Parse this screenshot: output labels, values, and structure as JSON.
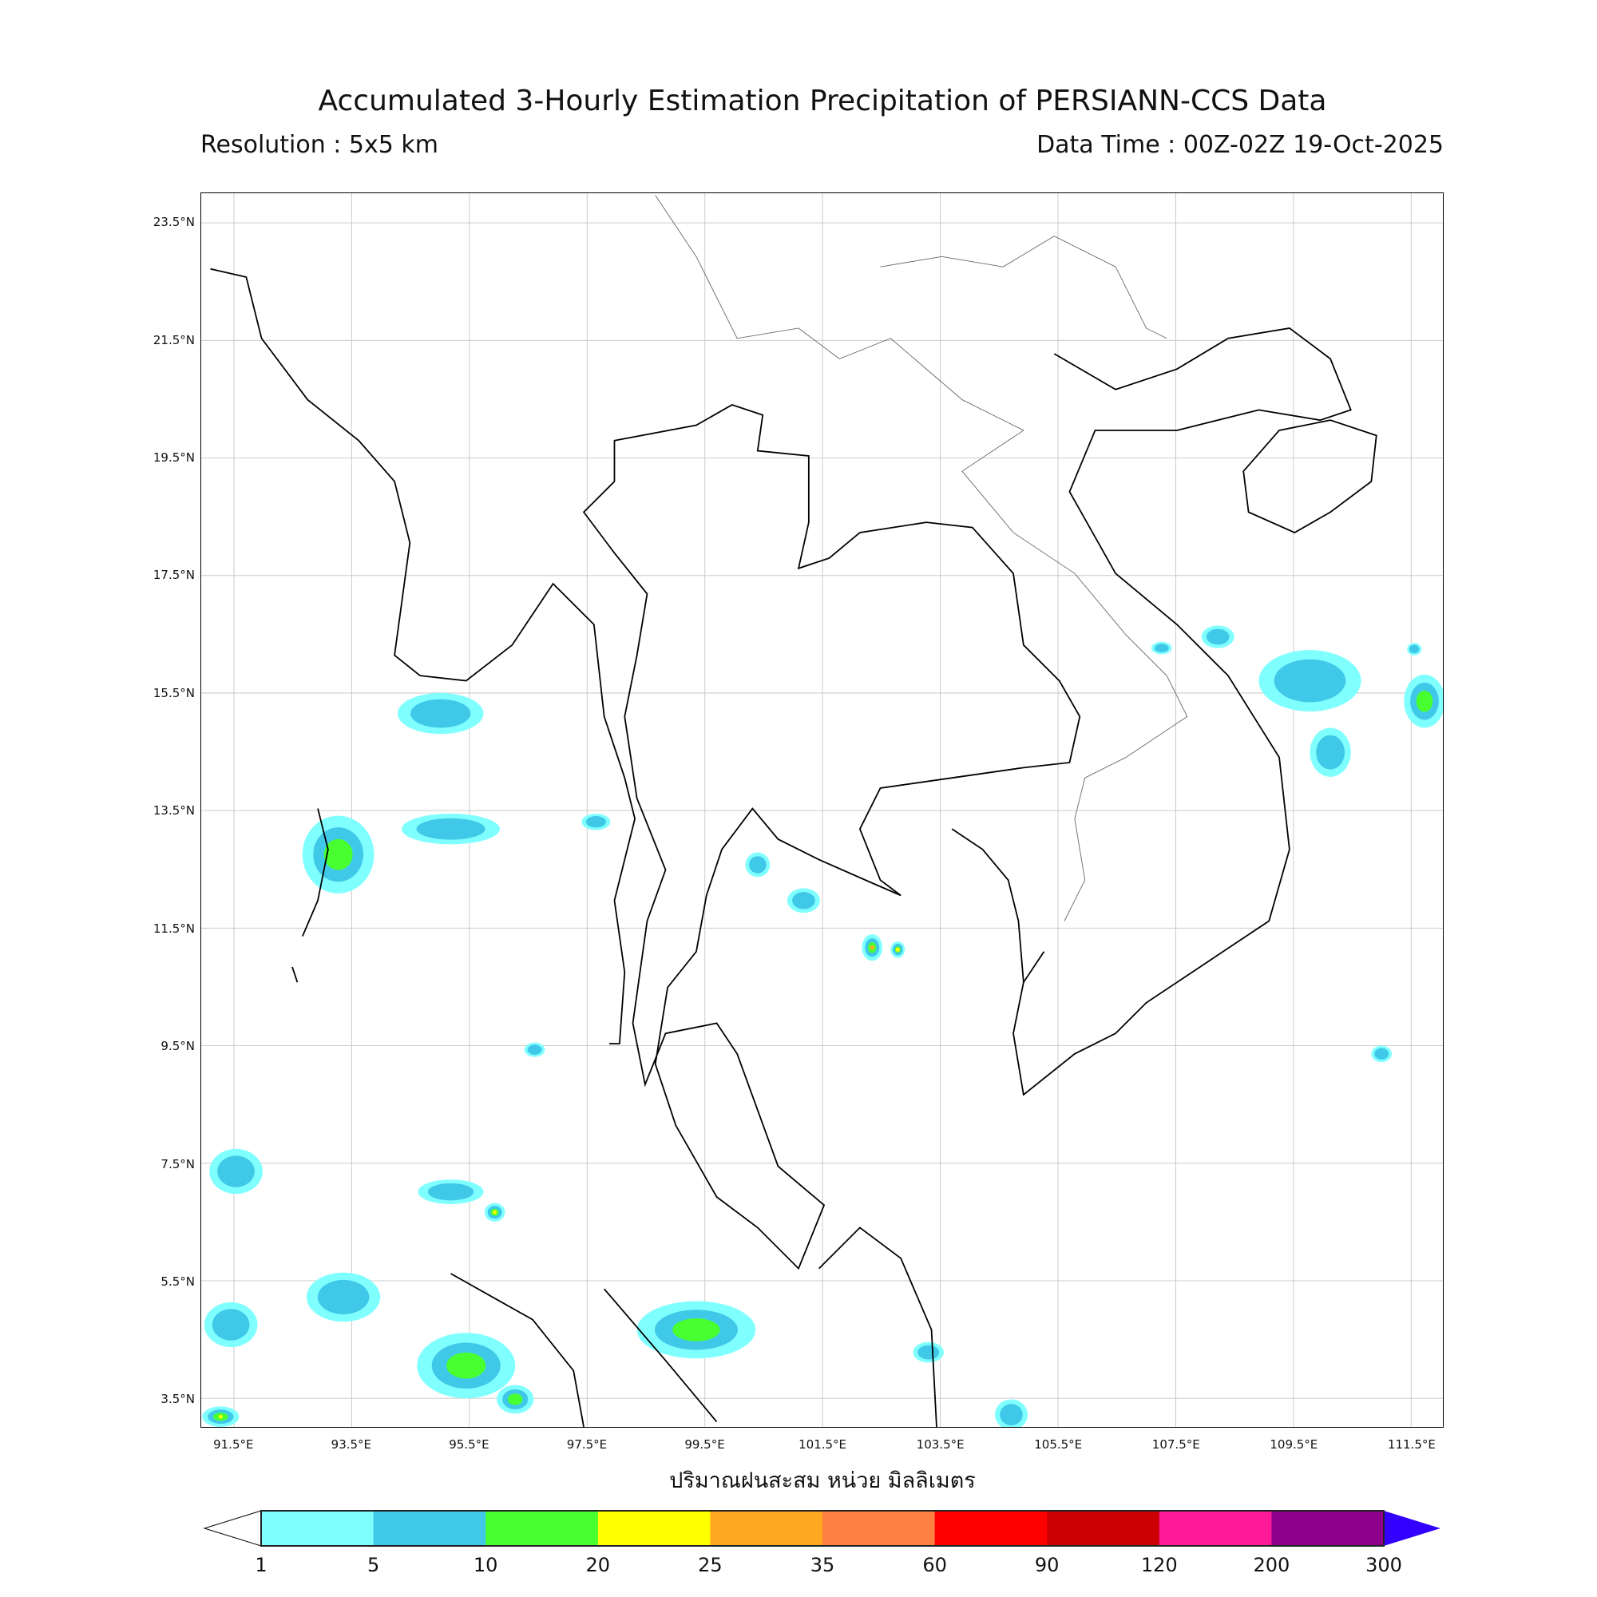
{
  "title": "Accumulated 3-Hourly Estimation Precipitation of PERSIANN-CCS Data",
  "resolution": "Resolution : 5x5 km",
  "data_time": "Data Time : 00Z-02Z 19-Oct-2025",
  "xlabel": "ปริมาณฝนสะสม หน่วย มิลลิเมตร",
  "map": {
    "lon_range": [
      90.94,
      112.04
    ],
    "lat_range": [
      3.0,
      24.0
    ],
    "grid": true,
    "lat_ticks": [
      "23.5°N",
      "21.5°N",
      "19.5°N",
      "17.5°N",
      "15.5°N",
      "13.5°N",
      "11.5°N",
      "9.5°N",
      "7.5°N",
      "5.5°N",
      "3.5°N"
    ],
    "lat_values": [
      23.5,
      21.5,
      19.5,
      17.5,
      15.5,
      13.5,
      11.5,
      9.5,
      7.5,
      5.5,
      3.5
    ],
    "lon_ticks": [
      "91.5°E",
      "93.5°E",
      "95.5°E",
      "97.5°E",
      "99.5°E",
      "101.5°E",
      "103.5°E",
      "105.5°E",
      "107.5°E",
      "109.5°E",
      "111.5°E"
    ],
    "lon_values": [
      91.5,
      93.5,
      95.5,
      97.5,
      99.5,
      101.5,
      103.5,
      105.5,
      107.5,
      109.5,
      111.5
    ]
  },
  "colorbar": {
    "levels": [
      "1",
      "5",
      "10",
      "20",
      "25",
      "35",
      "60",
      "90",
      "120",
      "200",
      "300"
    ],
    "colors": [
      "#80ffff",
      "#40c8e8",
      "#48ff30",
      "#ffff00",
      "#ffa820",
      "#ff8040",
      "#ff0000",
      "#cc0000",
      "#ff1898",
      "#8c008c"
    ],
    "under_color": "#ffffff",
    "over_color": "#3300ff"
  }
}
